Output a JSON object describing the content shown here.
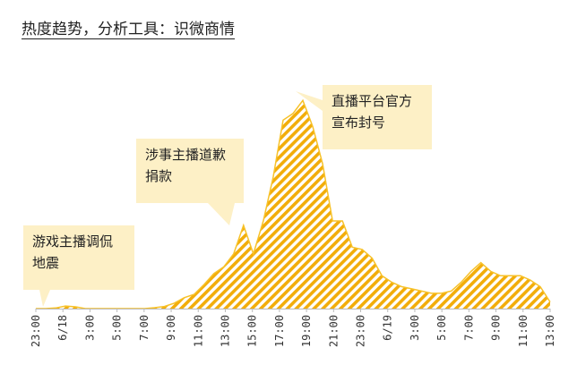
{
  "title": "热度趋势，分析工具：识微商情",
  "colors": {
    "fill": "#f7c22a",
    "hatch": "#f2ad0a",
    "callout_bg": "#fdf0c6",
    "text": "#222222"
  },
  "chart_data": {
    "type": "area",
    "title": "热度趋势，分析工具：识微商情",
    "xlabel": "",
    "ylabel": "",
    "grid": false,
    "legend": "none",
    "x_ticks": [
      "23:00",
      "6/18",
      "3:00",
      "5:00",
      "7:00",
      "9:00",
      "11:00",
      "13:00",
      "15:00",
      "17:00",
      "19:00",
      "21:00",
      "23:00",
      "6/19",
      "3:00",
      "5:00",
      "7:00",
      "9:00",
      "11:00",
      "13:00"
    ],
    "ylim": [
      0,
      100
    ],
    "series": [
      {
        "values": [
          0,
          0,
          0.3,
          1.2,
          0.8,
          0,
          0,
          0,
          0,
          0,
          0,
          0,
          0.4,
          1,
          2.5,
          5,
          6.5,
          11,
          16,
          19,
          25,
          38,
          25,
          40,
          60,
          86,
          89,
          95,
          83,
          66,
          40,
          40,
          28,
          27,
          23,
          15,
          12,
          10,
          9,
          8,
          7,
          7,
          8,
          12,
          17,
          21,
          17,
          15,
          15,
          15,
          13,
          10,
          3
        ]
      }
    ],
    "annotations": [
      {
        "text": "游戏主播调侃\n地震",
        "x": 1
      },
      {
        "text": "涉事主播道歉\n捐款",
        "x": 21
      },
      {
        "text": "直播平台官方\n宣布封号",
        "x": 27
      }
    ]
  }
}
